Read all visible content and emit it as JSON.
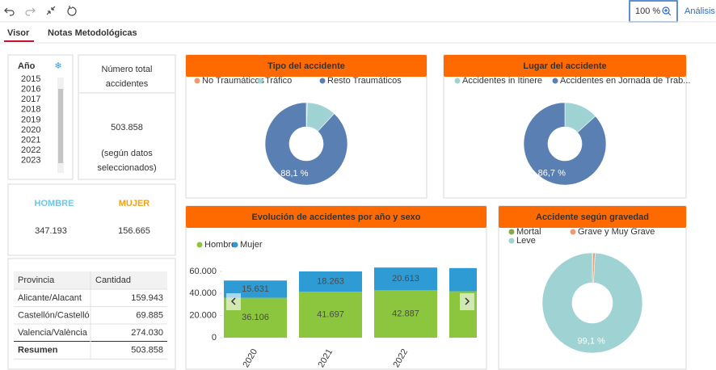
{
  "toolbar": {
    "zoom": "100 %",
    "analysis": "Análisis"
  },
  "tabs": [
    "Visor",
    "Notas Metodológicas"
  ],
  "year_filter": {
    "label": "Año",
    "years": [
      "2015",
      "2016",
      "2017",
      "2018",
      "2019",
      "2020",
      "2021",
      "2022",
      "2023"
    ]
  },
  "total": {
    "title_lines": [
      "Número total",
      "accidentes"
    ],
    "value": "503.858",
    "note_lines": [
      "(según datos",
      "seleccionados)"
    ]
  },
  "gender": {
    "male_label": "HOMBRE",
    "female_label": "MUJER",
    "male_value": "347.193",
    "female_value": "156.665"
  },
  "table": {
    "header": [
      "Provincia",
      "Cantidad"
    ],
    "rows": [
      [
        "Alicante/Alacant",
        "159.943"
      ],
      [
        "Castellón/Castelló",
        "69.885"
      ],
      [
        "Valencia/València",
        "274.030"
      ]
    ],
    "summary": [
      "Resumen",
      "503.858"
    ]
  },
  "chart_data": [
    {
      "type": "pie",
      "title": "Tipo del accidente",
      "categories": [
        "No Traumáticos",
        "Tráfico",
        "Resto Traumáticos"
      ],
      "values": [
        0.4,
        11.5,
        88.1
      ],
      "value_labels": [
        null,
        null,
        "88,1 %"
      ],
      "colors": [
        "#ef9a6f",
        "#9fd2d2",
        "#5a7fb3"
      ]
    },
    {
      "type": "pie",
      "title": "Lugar del accidente",
      "categories": [
        "Accidentes in Itinere",
        "Accidentes en Jornada de Trab..."
      ],
      "values": [
        13.3,
        86.7
      ],
      "value_labels": [
        null,
        "86,7 %"
      ],
      "colors": [
        "#9fd2d2",
        "#5a7fb3"
      ]
    },
    {
      "type": "bar",
      "stacked": true,
      "title": "Evolución de accidentes por año y sexo",
      "categories": [
        "2020",
        "2021",
        "2022",
        null
      ],
      "series": [
        {
          "name": "Hombre",
          "color": "#8cc63f",
          "values": [
            36106,
            41697,
            42887,
            42000
          ],
          "value_labels": [
            "36.106",
            "41.697",
            "42.887",
            null
          ]
        },
        {
          "name": "Mujer",
          "color": "#2f9bd5",
          "values": [
            15631,
            18263,
            20613,
            21000
          ],
          "value_labels": [
            "15.631",
            "18.263",
            "20.613",
            null
          ]
        }
      ],
      "ylim": [
        0,
        68000
      ],
      "yticks": [
        0,
        {
          "value": 20000,
          "label": "20.000"
        },
        {
          "value": 40000,
          "label": "40.000"
        },
        {
          "value": 60000,
          "label": "60.000"
        }
      ]
    },
    {
      "type": "pie",
      "title": "Accidente según gravedad",
      "categories": [
        "Mortal",
        "Grave y Muy Grave",
        "Leve"
      ],
      "values": [
        0.1,
        0.8,
        99.1
      ],
      "value_labels": [
        null,
        null,
        "99,1 %"
      ],
      "colors": [
        "#8aa64a",
        "#ef9a6f",
        "#9fd2d2"
      ]
    }
  ]
}
